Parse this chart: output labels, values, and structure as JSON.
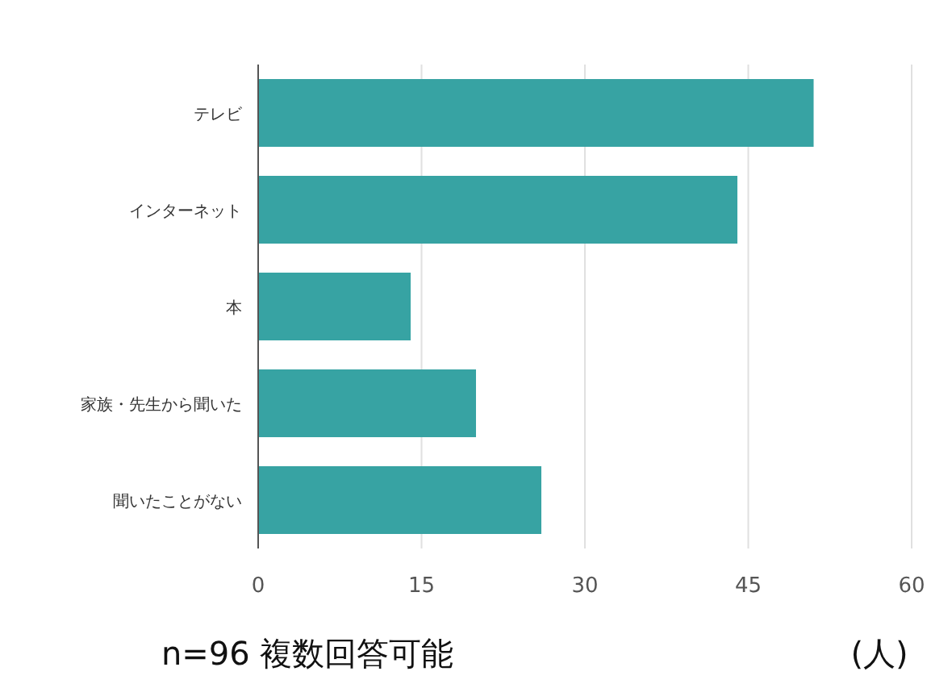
{
  "chart_data": {
    "type": "bar",
    "orientation": "horizontal",
    "categories": [
      "テレビ",
      "インターネット",
      "本",
      "家族・先生から聞いた",
      "聞いたことがない"
    ],
    "values": [
      51,
      44,
      14,
      20,
      26
    ],
    "color": "#37a3a3",
    "xlim": [
      0,
      60
    ],
    "xticks": [
      0,
      15,
      30,
      45,
      60
    ],
    "grid": "x",
    "xlabel": "(人)",
    "annotations": [
      "n=96 複数回答可能"
    ]
  }
}
